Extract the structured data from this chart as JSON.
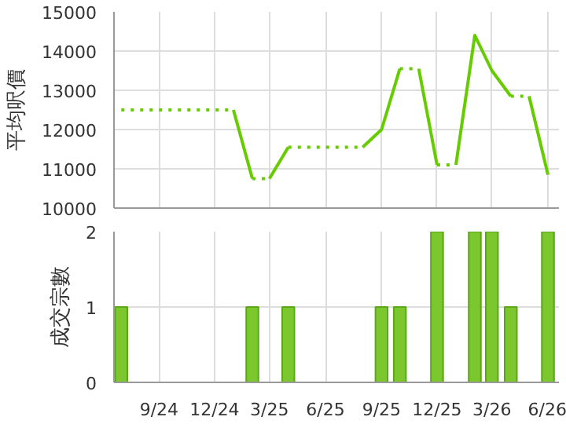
{
  "chart_data": [
    {
      "type": "line",
      "ylabel": "平均呎價",
      "xlim": [
        "2024-06-19",
        "2026-06-19"
      ],
      "xticks": [
        {
          "value": "2024-09",
          "label": null
        },
        {
          "value": "2024-12",
          "label": null
        },
        {
          "value": "2025-03",
          "label": null
        },
        {
          "value": "2025-06",
          "label": null
        },
        {
          "value": "2025-09",
          "label": null
        },
        {
          "value": "2025-12",
          "label": null
        },
        {
          "value": "2026-03",
          "label": null
        },
        {
          "value": "2026-06",
          "label": null
        }
      ],
      "ylim": [
        10000,
        15000
      ],
      "yticks": [
        10000,
        11000,
        12000,
        13000,
        14000,
        15000
      ],
      "tick_labels": "y",
      "grid": true,
      "marker": "none",
      "series": [
        {
          "color": "#66cc00",
          "line_style": "dotted",
          "x": [
            "2024-07",
            "2025-01"
          ],
          "values": [
            12500,
            12500
          ]
        },
        {
          "color": "#66cc00",
          "line_style": "solid",
          "x": [
            "2025-01",
            "2025-02"
          ],
          "values": [
            12500,
            10750
          ]
        },
        {
          "color": "#66cc00",
          "line_style": "dotted",
          "x": [
            "2025-02",
            "2025-03"
          ],
          "values": [
            10750,
            10750
          ]
        },
        {
          "color": "#66cc00",
          "line_style": "solid",
          "x": [
            "2025-03",
            "2025-04"
          ],
          "values": [
            10750,
            11550
          ]
        },
        {
          "color": "#66cc00",
          "line_style": "dotted",
          "x": [
            "2025-04",
            "2025-08"
          ],
          "values": [
            11550,
            11550
          ]
        },
        {
          "color": "#66cc00",
          "line_style": "solid",
          "x": [
            "2025-08",
            "2025-09",
            "2025-10"
          ],
          "values": [
            11550,
            12000,
            13550
          ]
        },
        {
          "color": "#66cc00",
          "line_style": "dotted",
          "x": [
            "2025-10",
            "2025-11"
          ],
          "values": [
            13550,
            13550
          ]
        },
        {
          "color": "#66cc00",
          "line_style": "solid",
          "x": [
            "2025-11",
            "2025-12"
          ],
          "values": [
            13550,
            11100
          ]
        },
        {
          "color": "#66cc00",
          "line_style": "dotted",
          "x": [
            "2025-12",
            "2026-01"
          ],
          "values": [
            11100,
            11100
          ]
        },
        {
          "color": "#66cc00",
          "line_style": "solid",
          "x": [
            "2026-01",
            "2026-02",
            "2026-03",
            "2026-04"
          ],
          "values": [
            11100,
            14400,
            13500,
            12850
          ]
        },
        {
          "color": "#66cc00",
          "line_style": "dotted",
          "x": [
            "2026-04",
            "2026-05"
          ],
          "values": [
            12850,
            12850
          ]
        },
        {
          "color": "#66cc00",
          "line_style": "solid",
          "x": [
            "2026-05",
            "2026-06"
          ],
          "values": [
            12850,
            10850
          ]
        }
      ]
    },
    {
      "type": "bar",
      "ylabel": "成交宗數",
      "xlim": [
        "2024-06-19",
        "2026-06-19"
      ],
      "xticks": [
        {
          "value": "2024-09",
          "label": "9/24"
        },
        {
          "value": "2024-12",
          "label": "12/24"
        },
        {
          "value": "2025-03",
          "label": "3/25"
        },
        {
          "value": "2025-06",
          "label": "6/25"
        },
        {
          "value": "2025-09",
          "label": "9/25"
        },
        {
          "value": "2025-12",
          "label": "12/25"
        },
        {
          "value": "2026-03",
          "label": "3/26"
        },
        {
          "value": "2026-06",
          "label": "6/26"
        }
      ],
      "ylim": [
        0,
        2
      ],
      "yticks": [
        0,
        1,
        2
      ],
      "grid": true,
      "series": [
        {
          "color": "#7cc62e",
          "x": [
            "2024-07",
            "2025-02",
            "2025-04",
            "2025-09",
            "2025-10",
            "2025-12",
            "2026-02",
            "2026-03",
            "2026-04",
            "2026-06"
          ],
          "values": [
            1,
            1,
            1,
            1,
            1,
            2,
            2,
            2,
            1,
            2
          ]
        }
      ]
    }
  ]
}
